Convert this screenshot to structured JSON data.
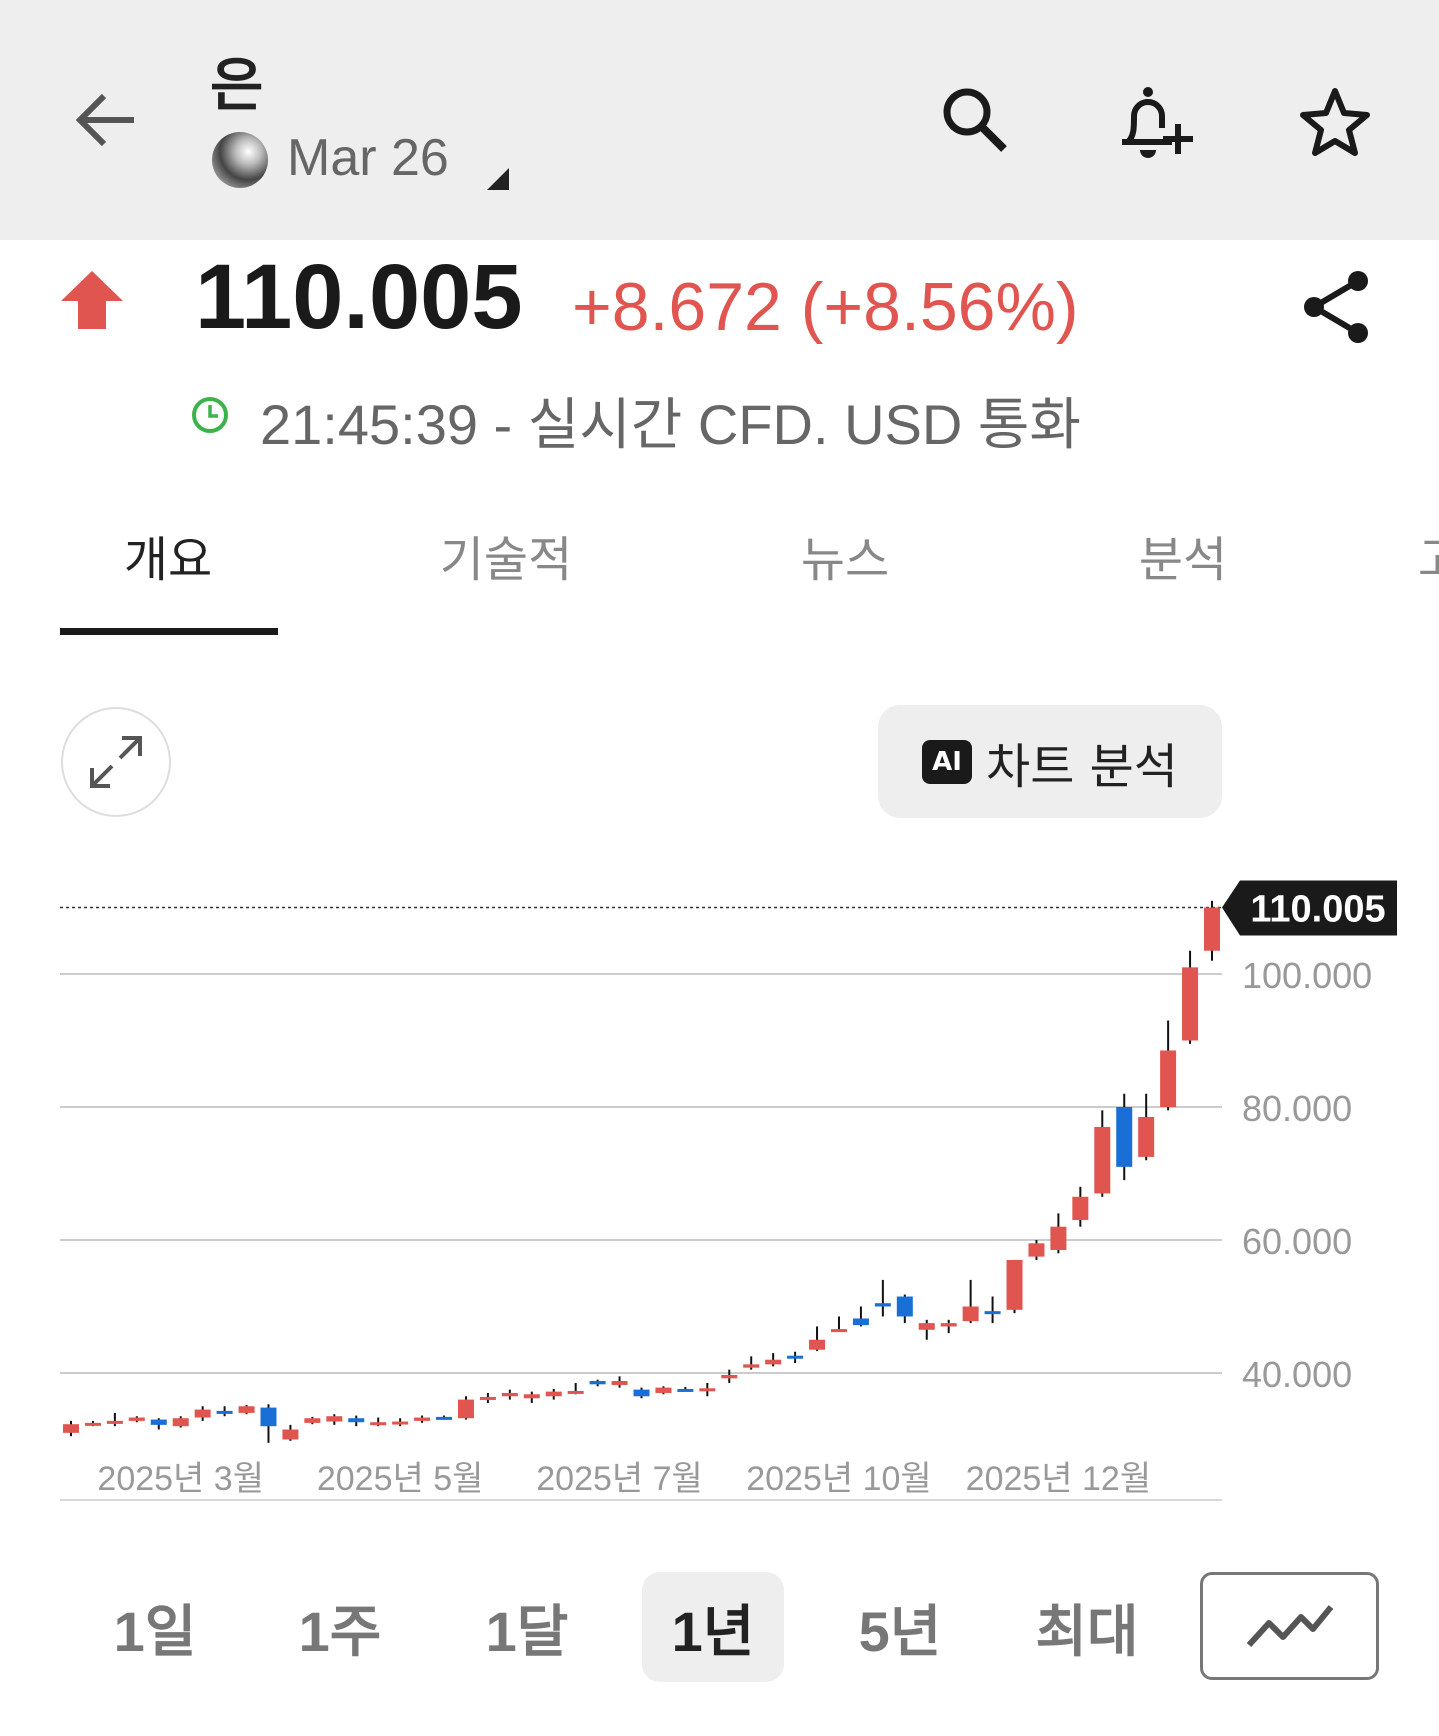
{
  "header": {
    "title": "은",
    "contract": "Mar 26",
    "icons": [
      "back-arrow-icon",
      "search-icon",
      "bell-plus-icon",
      "star-icon"
    ]
  },
  "quote": {
    "price": "110.005",
    "change": "+8.672 (+8.56%)",
    "direction": "up",
    "time_info": "21:45:39 - 실시간 CFD. USD 통화",
    "up_color": "#e05550"
  },
  "tabs": [
    {
      "label": "개요",
      "active": true
    },
    {
      "label": "기술적"
    },
    {
      "label": "뉴스"
    },
    {
      "label": "분석"
    },
    {
      "label": "고"
    }
  ],
  "chart_controls": {
    "ai_badge": "AI",
    "ai_label": "차트 분석"
  },
  "chart_data": {
    "type": "candlestick",
    "interval": "weekly",
    "current_price_label": "110.005",
    "y_ticks": [
      "40.000",
      "60.000",
      "80.000",
      "100.000"
    ],
    "y_tick_values": [
      40,
      60,
      80,
      100
    ],
    "x_ticks": [
      "2025년 3월",
      "2025년 5월",
      "2025년 7월",
      "2025년 10월",
      "2025년 12월"
    ],
    "x_tick_candle_index": [
      5,
      15,
      25,
      35,
      45
    ],
    "up_color": "#e05550",
    "down_color": "#1a6fd6",
    "ohlc": [
      [
        31,
        32.8,
        30.5,
        32.3
      ],
      [
        32.3,
        32.8,
        32,
        32.5
      ],
      [
        32.4,
        34,
        32,
        32.8
      ],
      [
        32.8,
        33.5,
        32.6,
        33.3
      ],
      [
        33,
        33.2,
        31.5,
        32.2
      ],
      [
        32,
        33.5,
        31.8,
        33.2
      ],
      [
        33.3,
        35,
        32.8,
        34.5
      ],
      [
        34.3,
        35,
        33.5,
        34
      ],
      [
        34,
        35.2,
        33.8,
        35
      ],
      [
        34.8,
        35.3,
        29.5,
        32
      ],
      [
        30,
        32.2,
        29.8,
        31.5
      ],
      [
        32.5,
        33.4,
        32.3,
        33.2
      ],
      [
        32.7,
        33.8,
        32.2,
        33.5
      ],
      [
        33.2,
        33.6,
        32,
        32.6
      ],
      [
        32.3,
        33.3,
        32,
        32.6
      ],
      [
        32.5,
        33.2,
        32,
        32.7
      ],
      [
        32.8,
        33.6,
        32.5,
        33.3
      ],
      [
        33.4,
        33.6,
        33,
        33.2
      ],
      [
        33.2,
        36.5,
        33,
        36
      ],
      [
        36.2,
        37,
        35.5,
        36.4
      ],
      [
        36.5,
        37.5,
        36,
        37
      ],
      [
        36.2,
        37.2,
        35.5,
        36.8
      ],
      [
        36.5,
        37.6,
        36,
        37.2
      ],
      [
        37,
        38.5,
        36.8,
        37.3
      ],
      [
        38.8,
        39,
        38,
        38.3
      ],
      [
        38.2,
        39.5,
        37.8,
        38.8
      ],
      [
        37.5,
        37.8,
        36.2,
        36.5
      ],
      [
        37,
        38,
        36.8,
        37.8
      ],
      [
        37.6,
        37.9,
        37.3,
        37.5
      ],
      [
        37.5,
        38.5,
        36.5,
        37.7
      ],
      [
        39.2,
        40.5,
        38.5,
        39.7
      ],
      [
        40.8,
        42.5,
        40.5,
        41.3
      ],
      [
        41.3,
        43,
        41,
        42
      ],
      [
        42.6,
        43.2,
        41.5,
        42.2
      ],
      [
        43.5,
        47,
        43.3,
        45
      ],
      [
        46.5,
        48.5,
        46.3,
        46.6
      ],
      [
        48.2,
        50,
        47,
        47.2
      ],
      [
        50.5,
        54,
        48.5,
        50
      ],
      [
        51.5,
        51.8,
        47.5,
        48.5
      ],
      [
        46.5,
        48,
        45,
        47.5
      ],
      [
        47,
        48,
        46,
        47.5
      ],
      [
        47.8,
        54,
        47.5,
        50
      ],
      [
        49.3,
        51.5,
        47.5,
        49
      ],
      [
        49.5,
        57,
        49,
        57
      ],
      [
        57.5,
        60,
        57,
        59.5
      ],
      [
        58.5,
        64,
        58,
        62
      ],
      [
        63,
        68,
        62,
        66.5
      ],
      [
        67,
        79.5,
        66.5,
        77
      ],
      [
        80,
        82,
        69,
        71
      ],
      [
        72.5,
        82,
        72,
        78.5
      ],
      [
        80,
        93,
        79.5,
        88.5
      ],
      [
        90,
        103.5,
        89.5,
        101
      ],
      [
        103.5,
        111,
        102,
        110
      ]
    ]
  },
  "ranges": [
    {
      "label": "1일"
    },
    {
      "label": "1주"
    },
    {
      "label": "1달"
    },
    {
      "label": "1년",
      "active": true
    },
    {
      "label": "5년"
    },
    {
      "label": "최대"
    }
  ],
  "chart_type_icon": "line-chart-icon"
}
